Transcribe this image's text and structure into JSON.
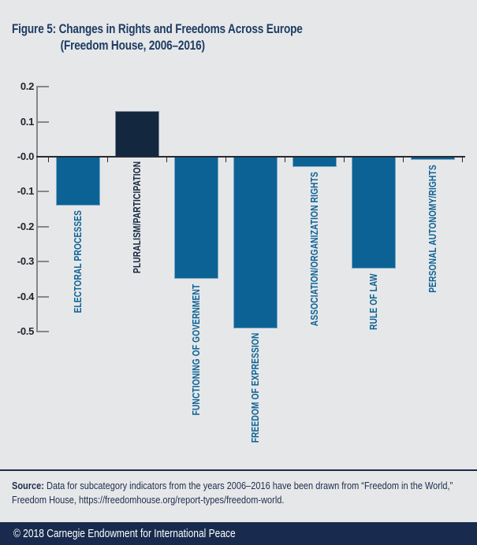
{
  "page": {
    "background": "#e6e7e9",
    "accent_navy": "#1b2b4a"
  },
  "header": {
    "title_line1": "Figure 5: Changes in Rights and Freedoms Across Europe",
    "title_line2": "(Freedom House, 2006–2016)"
  },
  "chart_data": {
    "type": "bar",
    "title": "Figure 5: Changes in Rights and Freedoms Across Europe (Freedom House, 2006–2016)",
    "categories": [
      "ELECTORAL PROCESSES",
      "PLURALISM/PARTICIPATION",
      "FUNCTIONING OF GOVERNMENT",
      "FREEDOM OF EXPRESSION",
      "ASSOCIATION/ORGANIZATION RIGHTS",
      "RULE OF LAW",
      "PERSONAL AUTONOMY/RIGHTS"
    ],
    "values": [
      -0.14,
      0.13,
      -0.35,
      -0.49,
      -0.03,
      -0.32,
      -0.01
    ],
    "xlabel": "",
    "ylabel": "",
    "ylim": [
      -0.5,
      0.2
    ],
    "ytick_values": [
      0.2,
      0.1,
      0,
      -0.1,
      -0.2,
      -0.3,
      -0.4,
      -0.5
    ],
    "ytick_labels": [
      "0.2",
      "0.1",
      "-0.0",
      "-0.1",
      "-0.2",
      "-0.3",
      "-0.4",
      "-0.5"
    ],
    "grid": false,
    "legend": null,
    "bar_color_positive": "#13273f",
    "bar_color_negative": "#0c6295",
    "label_color_positive": "#13273f",
    "label_color_negative": "#0c6295"
  },
  "source": {
    "label": "Source:",
    "text": " Data for subcategory indicators from the years 2006–2016 have been drawn from “Freedom in the World,” Freedom House, https://freedomhouse.org/report-types/freedom-world."
  },
  "footer": {
    "copyright": "© 2018 Carnegie Endowment for International Peace"
  }
}
